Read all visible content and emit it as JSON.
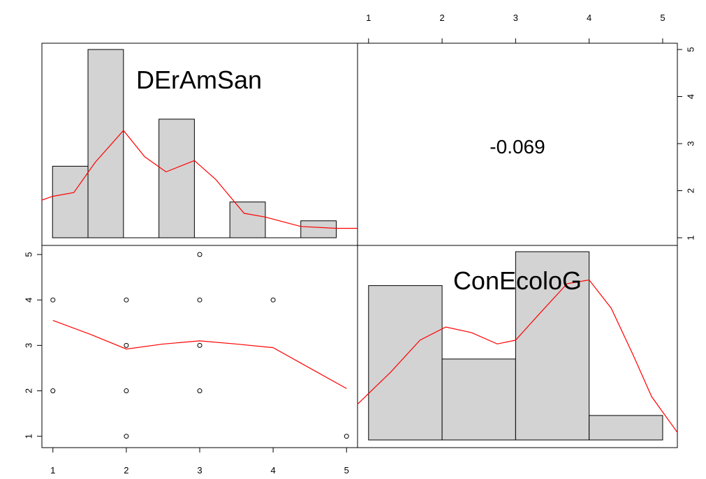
{
  "chart_data": [
    {
      "type": "histogram",
      "panel": "top-left",
      "variable": "DErAmSan",
      "bins": [
        [
          1.0,
          1.5
        ],
        [
          1.5,
          2.0
        ],
        [
          2.0,
          2.5
        ],
        [
          2.5,
          3.0
        ],
        [
          3.0,
          3.5
        ],
        [
          3.5,
          4.0
        ],
        [
          4.0,
          4.5
        ],
        [
          4.5,
          5.0
        ]
      ],
      "heights": [
        0.38,
        1.0,
        0,
        0.63,
        0,
        0.19,
        0,
        0.09
      ],
      "density_curve": [
        [
          0.85,
          0.2
        ],
        [
          1.0,
          0.22
        ],
        [
          1.3,
          0.24
        ],
        [
          1.6,
          0.4
        ],
        [
          2.0,
          0.57
        ],
        [
          2.3,
          0.43
        ],
        [
          2.6,
          0.35
        ],
        [
          3.0,
          0.41
        ],
        [
          3.3,
          0.31
        ],
        [
          3.7,
          0.13
        ],
        [
          4.0,
          0.11
        ],
        [
          4.5,
          0.06
        ],
        [
          5.0,
          0.05
        ],
        [
          5.3,
          0.05
        ]
      ],
      "x_range": [
        0.85,
        5.3
      ],
      "color": "#d3d3d3",
      "curve_color": "#ff0000"
    },
    {
      "type": "correlation",
      "panel": "top-right",
      "value": "-0.069"
    },
    {
      "type": "scatter",
      "panel": "bottom-left",
      "x": [
        1,
        1,
        2,
        2,
        2,
        2,
        3,
        3,
        3,
        3,
        4,
        5
      ],
      "y": [
        4,
        2,
        4,
        3,
        2,
        1,
        5,
        4,
        3,
        2,
        4,
        1
      ],
      "smooth": [
        [
          1,
          3.55
        ],
        [
          1.5,
          3.25
        ],
        [
          2,
          2.92
        ],
        [
          2.5,
          3.03
        ],
        [
          3,
          3.1
        ],
        [
          3.5,
          3.03
        ],
        [
          4,
          2.95
        ],
        [
          4.5,
          2.5
        ],
        [
          5,
          2.05
        ]
      ],
      "xlim": [
        0.85,
        5.15
      ],
      "ylim": [
        0.75,
        5.2
      ],
      "xticks": [
        "1",
        "2",
        "3",
        "4",
        "5"
      ],
      "yticks": [
        "1",
        "2",
        "3",
        "4",
        "5"
      ],
      "smooth_color": "#ff0000"
    },
    {
      "type": "histogram",
      "panel": "bottom-right",
      "variable": "ConEcoloG",
      "bins": [
        [
          1,
          2
        ],
        [
          2,
          3
        ],
        [
          3,
          4
        ],
        [
          4,
          5
        ]
      ],
      "heights": [
        0.82,
        0.43,
        1.0,
        0.13
      ],
      "density_curve": [
        [
          0.85,
          0.19
        ],
        [
          1.3,
          0.36
        ],
        [
          1.7,
          0.53
        ],
        [
          2.05,
          0.6
        ],
        [
          2.4,
          0.57
        ],
        [
          2.75,
          0.51
        ],
        [
          3.0,
          0.53
        ],
        [
          3.3,
          0.66
        ],
        [
          3.7,
          0.83
        ],
        [
          4.0,
          0.85
        ],
        [
          4.3,
          0.7
        ],
        [
          4.6,
          0.45
        ],
        [
          4.85,
          0.23
        ],
        [
          5.2,
          0.04
        ]
      ],
      "x_range": [
        0.85,
        5.2
      ],
      "top_axis_ticks": [
        "1",
        "2",
        "3",
        "4",
        "5"
      ],
      "right_axis_ticks": [
        "1",
        "2",
        "3",
        "4",
        "5"
      ],
      "color": "#d3d3d3",
      "curve_color": "#ff0000"
    }
  ]
}
